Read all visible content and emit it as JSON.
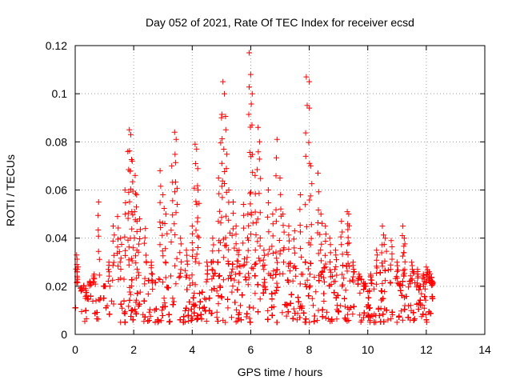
{
  "chart_data": {
    "type": "scatter",
    "title": "Day 052 of 2021, Rate Of TEC Index for receiver ecsd",
    "xlabel": "GPS time / hours",
    "ylabel": "ROTI / TECUs",
    "xlim": [
      0,
      14
    ],
    "ylim": [
      0,
      0.12
    ],
    "xticks": [
      0,
      2,
      4,
      6,
      8,
      10,
      12,
      14
    ],
    "xtick_labels": [
      "0",
      "2",
      "4",
      "6",
      "8",
      "10",
      "12",
      "14"
    ],
    "yticks": [
      0,
      0.02,
      0.04,
      0.06,
      0.08,
      0.1,
      0.12
    ],
    "ytick_labels": [
      "0",
      "0.02",
      "0.04",
      "0.06",
      "0.08",
      "0.1",
      "0.12"
    ],
    "grid": true,
    "marker": "plus",
    "color": "#ff0000",
    "series": [
      {
        "name": "ROTI",
        "x": [
          0.05,
          0.1,
          0.2,
          0.35,
          0.5,
          0.65,
          0.8,
          1.0,
          1.15,
          1.3,
          1.45,
          1.55,
          1.7,
          1.8,
          1.85,
          1.9,
          1.95,
          2.05,
          2.1,
          2.2,
          2.4,
          2.6,
          2.9,
          3.0,
          3.1,
          3.3,
          3.4,
          3.45,
          3.6,
          3.8,
          4.0,
          4.1,
          4.15,
          4.2,
          4.5,
          4.7,
          4.9,
          5.0,
          5.05,
          5.1,
          5.15,
          5.25,
          5.4,
          5.5,
          5.6,
          5.75,
          5.9,
          5.95,
          6.0,
          6.05,
          6.15,
          6.25,
          6.3,
          6.45,
          6.6,
          6.75,
          6.9,
          7.0,
          7.1,
          7.3,
          7.5,
          7.7,
          7.9,
          8.0,
          8.05,
          8.3,
          8.4,
          8.55,
          8.7,
          8.9,
          9.1,
          9.3,
          9.35,
          9.5,
          9.7,
          9.9,
          10.1,
          10.3,
          10.5,
          10.6,
          10.8,
          11.0,
          11.2,
          11.25,
          11.5,
          11.7,
          11.9,
          12.0,
          12.1,
          12.2
        ],
        "y": [
          0.033,
          0.028,
          0.018,
          0.015,
          0.022,
          0.025,
          0.055,
          0.02,
          0.03,
          0.045,
          0.049,
          0.04,
          0.06,
          0.076,
          0.085,
          0.083,
          0.072,
          0.066,
          0.058,
          0.048,
          0.044,
          0.03,
          0.068,
          0.058,
          0.05,
          0.07,
          0.084,
          0.081,
          0.04,
          0.035,
          0.045,
          0.079,
          0.077,
          0.06,
          0.03,
          0.04,
          0.065,
          0.09,
          0.105,
          0.1,
          0.085,
          0.06,
          0.055,
          0.045,
          0.035,
          0.054,
          0.05,
          0.117,
          0.108,
          0.1,
          0.066,
          0.086,
          0.08,
          0.035,
          0.06,
          0.05,
          0.081,
          0.065,
          0.05,
          0.045,
          0.043,
          0.058,
          0.107,
          0.105,
          0.07,
          0.067,
          0.05,
          0.045,
          0.04,
          0.035,
          0.047,
          0.051,
          0.05,
          0.03,
          0.025,
          0.02,
          0.025,
          0.035,
          0.045,
          0.04,
          0.039,
          0.03,
          0.045,
          0.04,
          0.03,
          0.027,
          0.025,
          0.028,
          0.026,
          0.022
        ]
      }
    ],
    "background_band": {
      "x_start": 0,
      "x_end": 12.25,
      "dense_fraction_of_points_near": [
        0.005,
        0.03
      ]
    }
  }
}
